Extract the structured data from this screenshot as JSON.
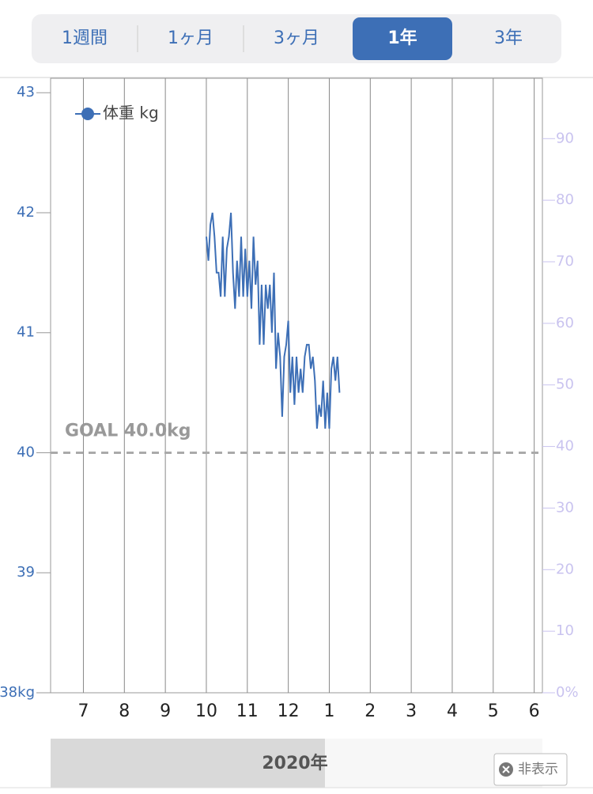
{
  "tabs": {
    "items": [
      "1週間",
      "1ヶ月",
      "3ヶ月",
      "1年",
      "3年"
    ],
    "active": 3
  },
  "chart_data": {
    "type": "line",
    "x": [
      10.0,
      10.05,
      10.1,
      10.15,
      10.2,
      10.25,
      10.3,
      10.35,
      10.4,
      10.45,
      10.5,
      10.55,
      10.6,
      10.65,
      10.7,
      10.75,
      10.8,
      10.85,
      10.9,
      10.95,
      11.0,
      11.05,
      11.1,
      11.15,
      11.2,
      11.25,
      11.3,
      11.35,
      11.4,
      11.45,
      11.5,
      11.55,
      11.6,
      11.65,
      11.7,
      11.75,
      11.8,
      11.85,
      11.9,
      11.95,
      12.0,
      12.05,
      12.1,
      12.15,
      12.2,
      12.25,
      12.3,
      12.35,
      12.4,
      12.45,
      12.5,
      12.55,
      12.6,
      12.65,
      12.7,
      12.75,
      12.8,
      12.85,
      12.9,
      12.95,
      13.0,
      13.05,
      13.1,
      13.15,
      13.2,
      13.25
    ],
    "series": [
      {
        "name": "体重 kg",
        "color": "#3d6fb6",
        "values": [
          41.8,
          41.6,
          41.9,
          42.0,
          41.8,
          41.5,
          41.5,
          41.3,
          41.8,
          41.3,
          41.7,
          41.8,
          42.0,
          41.5,
          41.2,
          41.6,
          41.3,
          41.8,
          41.3,
          41.7,
          41.3,
          41.6,
          41.2,
          41.8,
          41.4,
          41.6,
          40.9,
          41.4,
          40.9,
          41.4,
          41.2,
          41.4,
          41.0,
          41.5,
          40.7,
          41.0,
          40.8,
          40.3,
          40.8,
          40.9,
          41.1,
          40.5,
          40.8,
          40.4,
          40.8,
          40.5,
          40.7,
          40.5,
          40.8,
          40.9,
          40.9,
          40.7,
          40.8,
          40.6,
          40.2,
          40.4,
          40.3,
          40.6,
          40.2,
          40.5,
          40.2,
          40.7,
          40.8,
          40.6,
          40.8,
          40.5
        ]
      }
    ],
    "xlim": [
      6.2,
      18.2
    ],
    "xticks": [
      7,
      8,
      9,
      10,
      11,
      12,
      {
        "value": 13,
        "label": "1"
      },
      {
        "value": 14,
        "label": "2"
      },
      {
        "value": 15,
        "label": "3"
      },
      {
        "value": 16,
        "label": "4"
      },
      {
        "value": 17,
        "label": "5"
      },
      {
        "value": 18,
        "label": "6"
      }
    ],
    "ylim": [
      38,
      43.12
    ],
    "yticks": [
      {
        "value": 38,
        "label": "38kg"
      },
      39,
      40,
      41,
      42,
      43
    ],
    "y2lim": [
      0,
      99.8
    ],
    "y2ticks": [
      {
        "value": 0,
        "label": "0%"
      },
      10,
      20,
      30,
      40,
      50,
      60,
      70,
      80,
      90
    ],
    "grid": true,
    "goal": {
      "value": 40,
      "label": "GOAL 40.0kg"
    },
    "year_label": "2020年"
  },
  "hide_button": "非表示"
}
